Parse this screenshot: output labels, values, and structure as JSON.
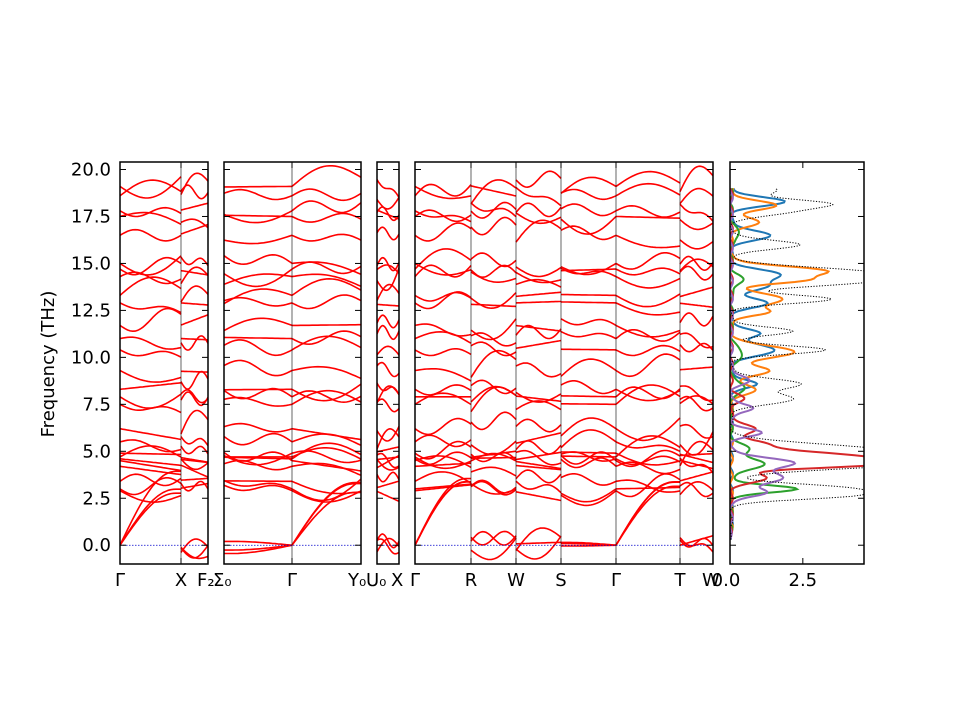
{
  "chart_data": {
    "type": "line",
    "title": "",
    "ylabel": "Frequency (THz)",
    "ylim": [
      -1.0,
      20.4
    ],
    "yticks": [
      "0.0",
      "2.5",
      "5.0",
      "7.5",
      "10.0",
      "12.5",
      "15.0",
      "17.5",
      "20.0"
    ],
    "band_color": "#ff0000",
    "zero_line_color": "#0000cc",
    "segments": [
      {
        "name": "band-panel-gamma-x-f2",
        "x_ticks": [
          "Γ",
          "X",
          "F$_2$"
        ],
        "x_tick_labels": [
          "Γ",
          "X",
          "F₂"
        ]
      },
      {
        "name": "band-panel-sigma0-gamma-y0",
        "x_ticks": [
          "Σ$_0$",
          "Γ",
          "Y$_0$"
        ],
        "x_tick_labels": [
          "Σ₀",
          "Γ",
          "Y₀"
        ]
      },
      {
        "name": "band-panel-u0-x",
        "x_ticks": [
          "U$_0$",
          "X"
        ],
        "x_tick_labels": [
          "U₀",
          "X"
        ]
      },
      {
        "name": "band-panel-gamma-r-w-s-gamma-t-w",
        "x_ticks": [
          "Γ",
          "R",
          "W",
          "S",
          "Γ",
          "T",
          "W"
        ],
        "x_tick_labels": [
          "Γ",
          "R",
          "W",
          "S",
          "Γ",
          "T",
          "W"
        ]
      }
    ],
    "branch_endpoints_gamma": [
      0.0,
      0.0,
      0.0,
      2.9,
      3.0,
      3.4,
      4.2,
      4.5,
      4.6,
      4.7,
      4.9,
      5.5,
      6.2,
      7.5,
      7.9,
      8.3,
      9.3,
      10.4,
      11.0,
      11.7,
      12.9,
      13.3,
      14.3,
      14.7,
      15.0,
      16.5,
      17.5,
      17.8,
      18.6,
      19.1
    ],
    "dos": {
      "xlim": [
        0.0,
        4.6
      ],
      "xticks": [
        "0.0",
        "2.5"
      ],
      "series": [
        {
          "name": "",
          "color": "#1f77b4",
          "peaks": [
            [
              18.3,
              1.8
            ],
            [
              16.5,
              1.3
            ],
            [
              14.4,
              1.6
            ],
            [
              13.8,
              1.1
            ],
            [
              12.9,
              1.2
            ],
            [
              11.3,
              1.0
            ],
            [
              10.4,
              1.5
            ],
            [
              8.6,
              0.9
            ]
          ]
        },
        {
          "name": "",
          "color": "#ff7f0e",
          "peaks": [
            [
              18.1,
              1.5
            ],
            [
              17.2,
              0.9
            ],
            [
              14.6,
              3.2
            ],
            [
              14.1,
              2.2
            ],
            [
              13.1,
              1.8
            ],
            [
              12.4,
              1.2
            ],
            [
              10.3,
              2.2
            ],
            [
              9.3,
              1.3
            ],
            [
              8.3,
              0.8
            ]
          ]
        },
        {
          "name": "",
          "color": "#2ca02c",
          "peaks": [
            [
              16.6,
              0.3
            ],
            [
              14.1,
              0.4
            ],
            [
              10.2,
              0.4
            ],
            [
              8.4,
              0.5
            ],
            [
              5.1,
              0.6
            ],
            [
              4.3,
              1.1
            ],
            [
              3.0,
              2.3
            ]
          ]
        },
        {
          "name": "",
          "color": "#d62728",
          "peaks": [
            [
              7.8,
              0.4
            ],
            [
              6.2,
              0.8
            ],
            [
              5.4,
              1.1
            ],
            [
              4.7,
              4.3
            ],
            [
              4.3,
              3.8
            ],
            [
              3.6,
              1.2
            ]
          ]
        },
        {
          "name": "",
          "color": "#9467bd",
          "peaks": [
            [
              8.8,
              0.6
            ],
            [
              7.3,
              0.8
            ],
            [
              6.0,
              1.0
            ],
            [
              4.4,
              2.1
            ],
            [
              3.6,
              1.8
            ],
            [
              2.8,
              1.2
            ]
          ]
        },
        {
          "name": "",
          "color": "#000000",
          "dotted": true,
          "peaks": [
            [
              18.9,
              1.6
            ],
            [
              18.2,
              2.7
            ],
            [
              17.8,
              2.0
            ],
            [
              16.0,
              2.4
            ],
            [
              14.5,
              4.6
            ],
            [
              14.0,
              3.6
            ],
            [
              13.1,
              3.4
            ],
            [
              11.4,
              2.1
            ],
            [
              10.4,
              3.2
            ],
            [
              8.6,
              2.3
            ],
            [
              7.8,
              2.1
            ],
            [
              5.2,
              3.3
            ],
            [
              4.7,
              4.6
            ],
            [
              4.3,
              4.2
            ],
            [
              3.0,
              4.0
            ],
            [
              2.6,
              3.0
            ]
          ]
        }
      ]
    }
  }
}
